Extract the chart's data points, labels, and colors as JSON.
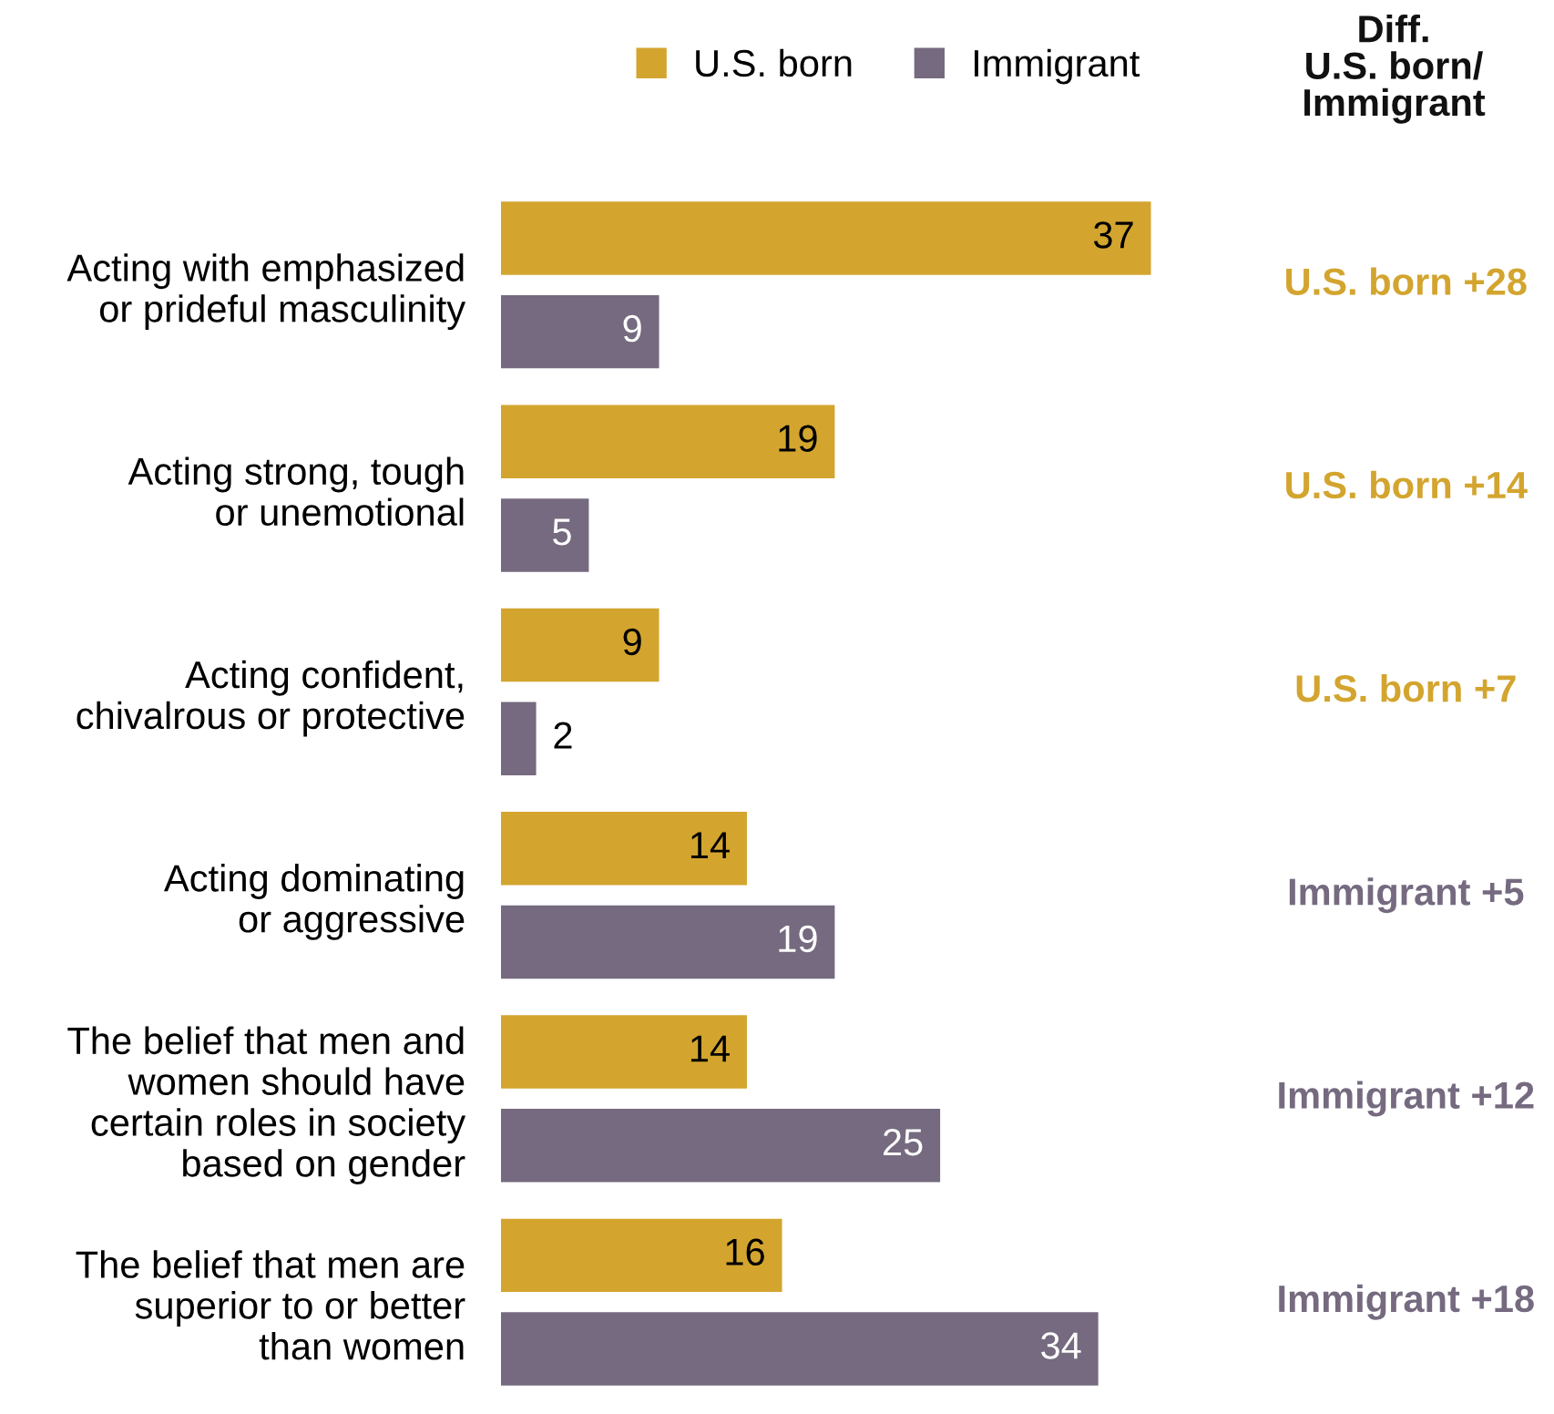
{
  "chart_data": {
    "type": "bar",
    "orientation": "horizontal",
    "categories": [
      "Acting with emphasized\nor prideful masculinity",
      "Acting strong, tough\nor unemotional",
      "Acting confident,\nchivalrous or protective",
      "Acting dominating\nor aggressive",
      "The belief that men and\nwomen should have\ncertain roles in society\nbased on gender",
      "The belief that men are\nsuperior to or better\nthan women"
    ],
    "series": [
      {
        "name": "U.S. born",
        "color": "#d3a52f",
        "values": [
          37,
          19,
          9,
          14,
          14,
          16
        ]
      },
      {
        "name": "Immigrant",
        "color": "#756a7f",
        "values": [
          9,
          5,
          2,
          19,
          25,
          34
        ]
      }
    ],
    "data_labels": true,
    "legend": "top",
    "annotations": [
      "Diff.\nU.S. born/\nImmigrant",
      "U.S. born +28",
      "U.S. born +14",
      "U.S. born +7",
      "Immigrant +5",
      "Immigrant +12",
      "Immigrant +18"
    ]
  }
}
